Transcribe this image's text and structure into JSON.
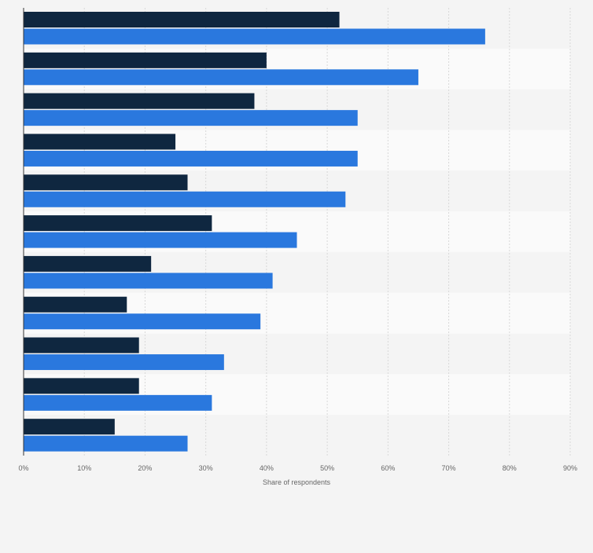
{
  "chart_data": {
    "type": "bar",
    "orientation": "horizontal",
    "title": "",
    "xlabel": "Share of respondents",
    "ylabel": "",
    "xlim": [
      0,
      90
    ],
    "x_ticks": [
      "0%",
      "10%",
      "20%",
      "30%",
      "40%",
      "50%",
      "60%",
      "70%",
      "80%",
      "90%"
    ],
    "categories": [
      "",
      "",
      "",
      "",
      "",
      "",
      "",
      "",
      "",
      "",
      ""
    ],
    "series": [
      {
        "color": "#0f2740",
        "values": [
          52,
          40,
          38,
          25,
          27,
          31,
          21,
          17,
          19,
          19,
          15
        ]
      },
      {
        "color": "#2a78de",
        "values": [
          76,
          65,
          55,
          55,
          53,
          45,
          41,
          39,
          33,
          31,
          27
        ]
      }
    ],
    "grid": "vertical",
    "legend": "none"
  }
}
